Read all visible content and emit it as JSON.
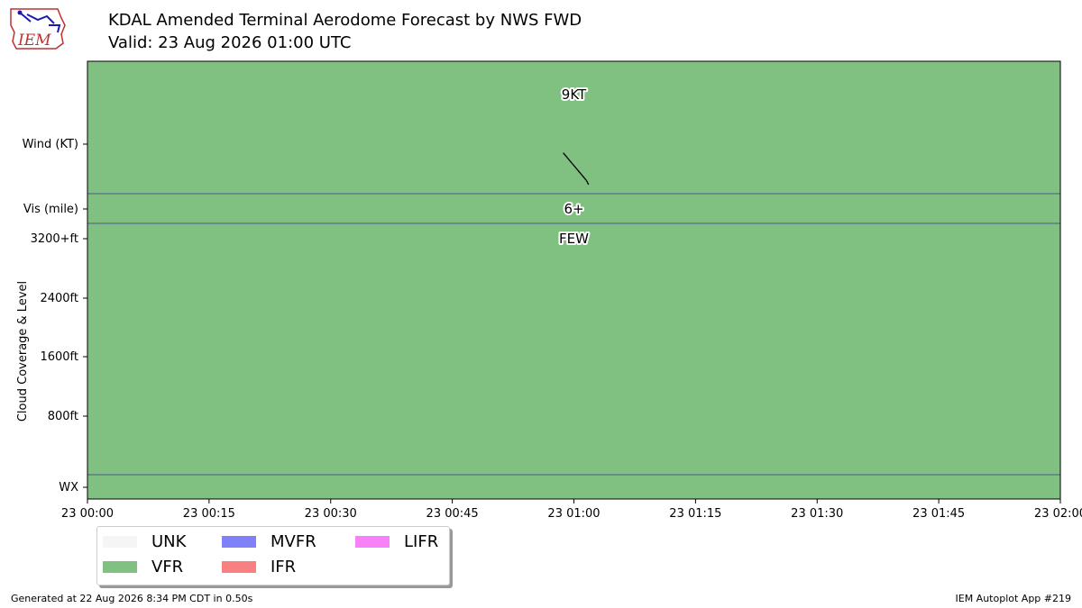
{
  "header": {
    "title": "KDAL Amended Terminal Aerodome Forecast by NWS FWD",
    "subtitle": "Valid: 23 Aug 2026 01:00 UTC",
    "logo_text": "IEM"
  },
  "chart_data": {
    "type": "timeline",
    "x_ticks": [
      "23 00:00",
      "23 00:15",
      "23 00:30",
      "23 00:45",
      "23 01:00",
      "23 01:15",
      "23 01:30",
      "23 01:45",
      "23 02:00"
    ],
    "x_range_minutes": [
      0,
      120
    ],
    "rows": [
      "Wind (KT)",
      "Vis (mile)",
      "Cloud Coverage & Level",
      "WX"
    ],
    "cloud_ticks": [
      "3200+ft",
      "2400ft",
      "1600ft",
      "800ft"
    ],
    "cloud_axis_label": "Cloud Coverage & Level",
    "periods": [
      {
        "start_minute": 0,
        "end_minute": 120,
        "category": "VFR",
        "wind_kt": "9KT",
        "wind_direction_deg": 320,
        "visibility": "6+",
        "clouds": "FEW"
      }
    ],
    "observation_minute": 60,
    "category_colors": {
      "UNK": "#f5f5f5",
      "VFR": "#80c080",
      "MVFR": "#8080f8",
      "IFR": "#f88080",
      "LIFR": "#f880f8"
    }
  },
  "legend": [
    {
      "label": "UNK",
      "color": "#f5f5f5"
    },
    {
      "label": "MVFR",
      "color": "#8080f8"
    },
    {
      "label": "LIFR",
      "color": "#f880f8"
    },
    {
      "label": "VFR",
      "color": "#80c080"
    },
    {
      "label": "IFR",
      "color": "#f88080"
    }
  ],
  "footer": {
    "generated": "Generated at 22 Aug 2026 8:34 PM CDT in 0.50s",
    "app": "IEM Autoplot App #219"
  }
}
